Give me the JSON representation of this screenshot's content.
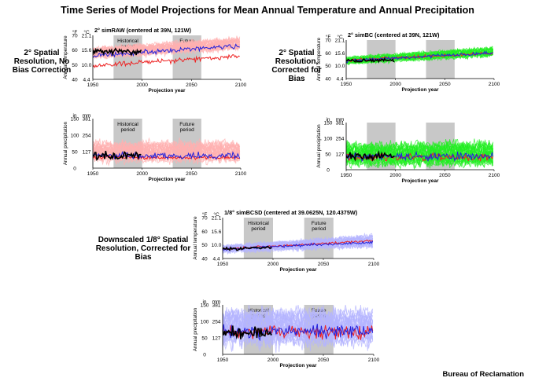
{
  "title": "Time Series of Model Projections for Mean Annual Temperature and Annual Precipitation",
  "row_labels": {
    "raw": "2° Spatial Resolution, No Bias Correction",
    "bc": "2° Spatial Resolution, Corrected for Bias",
    "bcsd": "Downscaled 1/8° Spatial Resolution, Corrected for Bias"
  },
  "credit": "Bureau of Reclamation",
  "colors": {
    "observed": "#000000",
    "raw_ensemble": "#ffb0b0",
    "bc_ensemble": "#22ee22",
    "bcsd_ensemble": "#b4b4ff",
    "model_blue": "#2222dd",
    "model_red": "#ee2222",
    "period_shade": "#c8c8c8"
  },
  "chart_data": [
    {
      "id": "raw-temp",
      "type": "line",
      "title": "2° simRAW (centered at 39N, 121W)",
      "xlabel": "Projection year",
      "ylabel": "Annual temperature",
      "unit_left": "°F",
      "unit_right": "°C",
      "xlim": [
        1950,
        2100
      ],
      "ylim": [
        40,
        70
      ],
      "x_ticks": [
        1950,
        2000,
        2050,
        2100
      ],
      "y_ticks_left": [
        40,
        50,
        60,
        70
      ],
      "y_ticks_right": [
        "4.4",
        "10.0",
        "15.6",
        "21.1"
      ],
      "periods": [
        {
          "label": "Historical period",
          "range": [
            1971,
            2000
          ]
        },
        {
          "label": "Future period",
          "range": [
            2031,
            2060
          ]
        }
      ],
      "ensemble": {
        "start": [
          62,
          54
        ],
        "end": [
          69,
          60
        ],
        "color_key": "raw_ensemble"
      },
      "series": [
        {
          "color_key": "observed",
          "range": [
            1950,
            1999
          ],
          "start": 59,
          "end": 59,
          "amp": 3.0
        },
        {
          "color_key": "model_blue",
          "range": [
            1950,
            2099
          ],
          "start": 56,
          "end": 63,
          "amp": 2.5
        },
        {
          "color_key": "model_red",
          "range": [
            1950,
            2099
          ],
          "start": 49,
          "end": 56,
          "amp": 2.5
        }
      ]
    },
    {
      "id": "bc-temp",
      "type": "line",
      "title": "2° simBC (centered at 39N, 121W)",
      "xlabel": "Projection year",
      "ylabel": "Annual temperature",
      "unit_left": "°F",
      "unit_right": "°C",
      "xlim": [
        1950,
        2100
      ],
      "ylim": [
        40,
        70
      ],
      "x_ticks": [
        1950,
        2000,
        2050,
        2100
      ],
      "y_ticks_left": [
        40,
        50,
        60,
        70
      ],
      "y_ticks_right": [
        "4.4",
        "10.0",
        "15.6",
        "21.1"
      ],
      "periods": [
        {
          "label": "",
          "range": [
            1971,
            2000
          ]
        },
        {
          "label": "",
          "range": [
            2031,
            2060
          ]
        }
      ],
      "ensemble": {
        "start": [
          57,
          51
        ],
        "end": [
          65,
          57
        ],
        "color_key": "bc_ensemble"
      },
      "series": [
        {
          "color_key": "observed",
          "range": [
            1950,
            1999
          ],
          "start": 54,
          "end": 54,
          "amp": 2.0
        },
        {
          "color_key": "model_blue",
          "range": [
            1950,
            2099
          ],
          "start": 54,
          "end": 60,
          "amp": 1.8
        },
        {
          "color_key": "model_red",
          "range": [
            1950,
            2099
          ],
          "start": 54,
          "end": 60,
          "amp": 1.8
        }
      ]
    },
    {
      "id": "raw-precip",
      "type": "line",
      "title": "",
      "xlabel": "Projection year",
      "ylabel": "Annual precipitation",
      "unit_left": "in",
      "unit_right": "mm",
      "xlim": [
        1950,
        2100
      ],
      "ylim": [
        0,
        150
      ],
      "x_ticks": [
        1950,
        2000,
        2050,
        2100
      ],
      "y_ticks_left": [
        0,
        50,
        100,
        150
      ],
      "y_ticks_right": [
        "127",
        "254",
        "381"
      ],
      "y_ticks_right_values": [
        50,
        100,
        150
      ],
      "periods": [
        {
          "label": "Historical period",
          "range": [
            1971,
            2000
          ]
        },
        {
          "label": "Future period",
          "range": [
            2031,
            2060
          ]
        }
      ],
      "ensemble": {
        "start": [
          82,
          18
        ],
        "end": [
          82,
          18
        ],
        "color_key": "raw_ensemble"
      },
      "series": [
        {
          "color_key": "observed",
          "range": [
            1950,
            1999
          ],
          "start": 38,
          "end": 38,
          "amp": 18
        },
        {
          "color_key": "model_blue",
          "range": [
            1950,
            2099
          ],
          "start": 38,
          "end": 38,
          "amp": 15
        },
        {
          "color_key": "model_red",
          "range": [
            1950,
            2099
          ],
          "start": 32,
          "end": 32,
          "amp": 7
        }
      ]
    },
    {
      "id": "bc-precip",
      "type": "line",
      "title": "",
      "xlabel": "Projection year",
      "ylabel": "Annual precipitation",
      "unit_left": "in",
      "unit_right": "mm",
      "xlim": [
        1950,
        2100
      ],
      "ylim": [
        0,
        150
      ],
      "x_ticks": [
        1950,
        2000,
        2050,
        2100
      ],
      "y_ticks_left": [
        0,
        50,
        100,
        150
      ],
      "y_ticks_right": [
        "127",
        "254",
        "381"
      ],
      "y_ticks_right_values": [
        50,
        100,
        150
      ],
      "periods": [
        {
          "label": "",
          "range": [
            1971,
            2000
          ]
        },
        {
          "label": "",
          "range": [
            2031,
            2060
          ]
        }
      ],
      "ensemble": {
        "start": [
          88,
          10
        ],
        "end": [
          92,
          10
        ],
        "color_key": "bc_ensemble"
      },
      "series": [
        {
          "color_key": "observed",
          "range": [
            1950,
            1999
          ],
          "start": 42,
          "end": 42,
          "amp": 20
        },
        {
          "color_key": "model_blue",
          "range": [
            1950,
            2099
          ],
          "start": 42,
          "end": 42,
          "amp": 18
        },
        {
          "color_key": "model_red",
          "range": [
            1950,
            2099
          ],
          "start": 40,
          "end": 40,
          "amp": 16
        }
      ]
    },
    {
      "id": "bcsd-temp",
      "type": "line",
      "title": "1/8° simBCSD (centered at 39.0625N, 120.4375W)",
      "xlabel": "Projection year",
      "ylabel": "Annual temperature",
      "unit_left": "°F",
      "unit_right": "°C",
      "xlim": [
        1950,
        2100
      ],
      "ylim": [
        40,
        70
      ],
      "x_ticks": [
        1950,
        2000,
        2050,
        2100
      ],
      "y_ticks_left": [
        40,
        50,
        60,
        70
      ],
      "y_ticks_right": [
        "4.4",
        "10.0",
        "15.6",
        "21.1"
      ],
      "periods": [
        {
          "label": "Historical period",
          "range": [
            1971,
            2000
          ]
        },
        {
          "label": "Future period",
          "range": [
            2031,
            2060
          ]
        }
      ],
      "ensemble": {
        "start": [
          50,
          44
        ],
        "end": [
          58,
          48
        ],
        "color_key": "bcsd_ensemble"
      },
      "series": [
        {
          "color_key": "observed",
          "range": [
            1950,
            1999
          ],
          "start": 47,
          "end": 48,
          "amp": 1.5
        },
        {
          "color_key": "model_blue",
          "range": [
            1950,
            2099
          ],
          "start": 47,
          "end": 52,
          "amp": 1.5
        },
        {
          "color_key": "model_red",
          "range": [
            1950,
            2099
          ],
          "start": 47,
          "end": 53,
          "amp": 1.2
        }
      ]
    },
    {
      "id": "bcsd-precip",
      "type": "line",
      "title": "",
      "xlabel": "Projection year",
      "ylabel": "Annual precipitation",
      "unit_left": "in",
      "unit_right": "mm",
      "xlim": [
        1950,
        2100
      ],
      "ylim": [
        0,
        150
      ],
      "x_ticks": [
        1950,
        2000,
        2050,
        2100
      ],
      "y_ticks_left": [
        0,
        50,
        100,
        150
      ],
      "y_ticks_right": [
        "127",
        "254",
        "381"
      ],
      "y_ticks_right_values": [
        50,
        100,
        150
      ],
      "periods": [
        {
          "label": "Historical period",
          "range": [
            1971,
            2000
          ]
        },
        {
          "label": "Future period",
          "range": [
            2031,
            2060
          ]
        }
      ],
      "ensemble": {
        "start": [
          140,
          25
        ],
        "end": [
          140,
          25
        ],
        "color_key": "bcsd_ensemble"
      },
      "series": [
        {
          "color_key": "observed",
          "range": [
            1950,
            1999
          ],
          "start": 68,
          "end": 68,
          "amp": 28
        },
        {
          "color_key": "model_blue",
          "range": [
            1950,
            2099
          ],
          "start": 70,
          "end": 70,
          "amp": 30
        },
        {
          "color_key": "model_red",
          "range": [
            1950,
            2099
          ],
          "start": 68,
          "end": 68,
          "amp": 30
        }
      ]
    }
  ]
}
